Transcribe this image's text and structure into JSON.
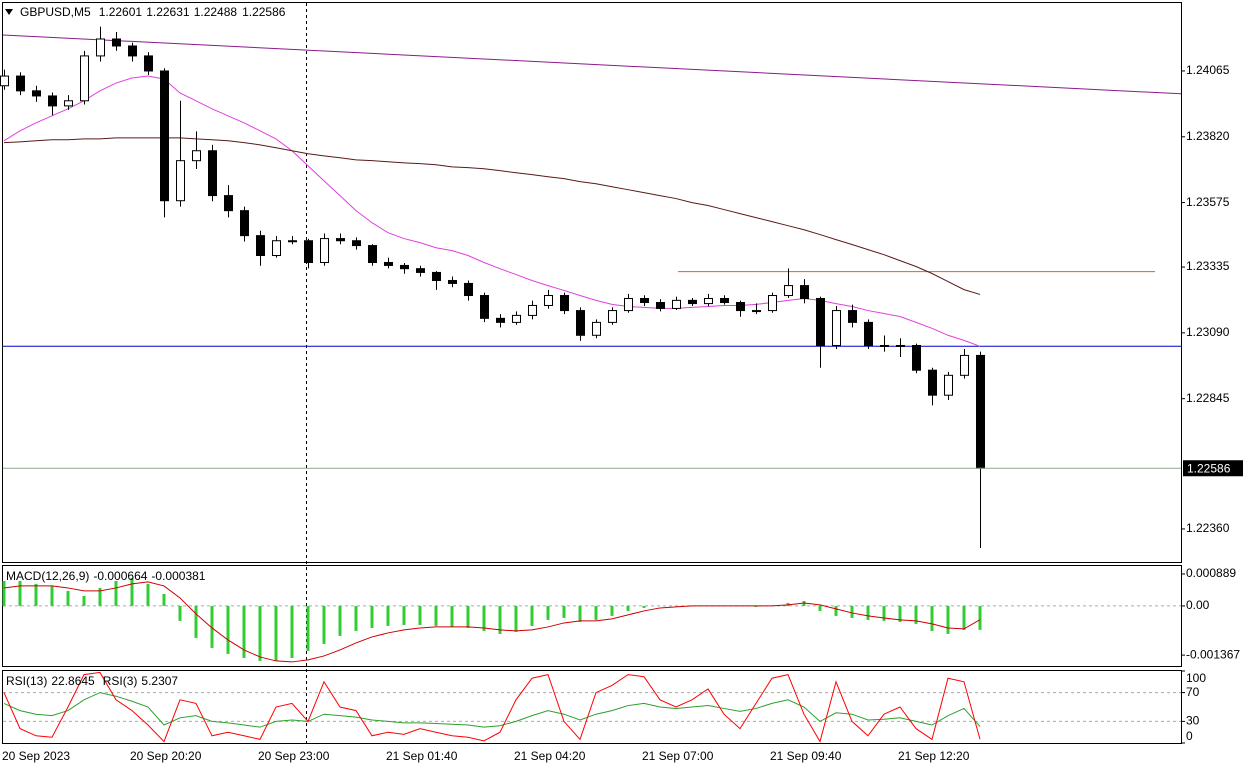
{
  "chart_data": [
    {
      "type": "candlestick",
      "title": "GBPUSD,M5",
      "header_ohlc": [
        1.22601,
        1.22631,
        1.22488,
        1.22586
      ],
      "up_color": "#ffffff",
      "down_color": "#000000",
      "ylim": [
        1.22237,
        1.24318
      ],
      "yticks": [
        1.24065,
        {
          "value": 1.2382,
          "label": "1.23820"
        },
        1.23575,
        1.23335,
        {
          "value": 1.2309,
          "label": "1.23090"
        },
        1.22845,
        {
          "value": 1.2236,
          "label": "1.22360"
        }
      ],
      "time_labels": [
        "20 Sep 2023",
        "20 Sep 20:20",
        "20 Sep 23:00",
        "21 Sep 01:40",
        "21 Sep 04:20",
        "21 Sep 07:00",
        "21 Sep 09:40",
        "21 Sep 12:20"
      ],
      "levels": [
        {
          "value": 1.2304,
          "color": "#0000cd"
        },
        {
          "value": 1.23318,
          "color": "#d2691e"
        }
      ],
      "trendline": {
        "values": [
          1.24199,
          1.2398
        ],
        "color": "#8b1a8b"
      },
      "candles": [
        [
          1.2401,
          1.2407,
          1.23995,
          1.24046
        ],
        [
          1.24046,
          1.2406,
          1.23975,
          1.23991
        ],
        [
          1.23991,
          1.2401,
          1.2395,
          1.23972
        ],
        [
          1.23972,
          1.23985,
          1.239,
          1.23935
        ],
        [
          1.23935,
          1.23975,
          1.2392,
          1.23954
        ],
        [
          1.23954,
          1.2414,
          1.2394,
          1.24121
        ],
        [
          1.24121,
          1.2423,
          1.241,
          1.24184
        ],
        [
          1.24184,
          1.2421,
          1.2414,
          1.24158
        ],
        [
          1.24158,
          1.2417,
          1.241,
          1.24121
        ],
        [
          1.24121,
          1.24135,
          1.2405,
          1.24065
        ],
        [
          1.24065,
          1.24075,
          1.2352,
          1.23582
        ],
        [
          1.23582,
          1.23954,
          1.2356,
          1.23731
        ],
        [
          1.23731,
          1.2384,
          1.237,
          1.23768
        ],
        [
          1.23768,
          1.2379,
          1.2358,
          1.23601
        ],
        [
          1.23601,
          1.2364,
          1.2352,
          1.23545
        ],
        [
          1.23545,
          1.2356,
          1.2343,
          1.23452
        ],
        [
          1.23452,
          1.2347,
          1.2334,
          1.23378
        ],
        [
          1.23378,
          1.2345,
          1.2337,
          1.23433
        ],
        [
          1.23433,
          1.2345,
          1.2342,
          1.23433
        ],
        [
          1.23433,
          1.2344,
          1.2333,
          1.23352
        ],
        [
          1.23352,
          1.2346,
          1.2334,
          1.23441
        ],
        [
          1.23441,
          1.2346,
          1.2342,
          1.23433
        ],
        [
          1.23433,
          1.23445,
          1.234,
          1.23415
        ],
        [
          1.23415,
          1.2342,
          1.2334,
          1.23352
        ],
        [
          1.23352,
          1.2337,
          1.2333,
          1.23341
        ],
        [
          1.23341,
          1.2335,
          1.2331,
          1.23329
        ],
        [
          1.23329,
          1.2334,
          1.233,
          1.23315
        ],
        [
          1.23315,
          1.2332,
          1.2325,
          1.23285
        ],
        [
          1.23285,
          1.233,
          1.2326,
          1.23274
        ],
        [
          1.23274,
          1.23285,
          1.2321,
          1.23229
        ],
        [
          1.23229,
          1.2324,
          1.2313,
          1.23144
        ],
        [
          1.23144,
          1.2316,
          1.2311,
          1.23129
        ],
        [
          1.23129,
          1.2317,
          1.2312,
          1.23155
        ],
        [
          1.23155,
          1.2321,
          1.2314,
          1.23192
        ],
        [
          1.23192,
          1.2325,
          1.2318,
          1.23229
        ],
        [
          1.23229,
          1.2324,
          1.2316,
          1.23173
        ],
        [
          1.23173,
          1.23185,
          1.2306,
          1.23081
        ],
        [
          1.23081,
          1.2314,
          1.2307,
          1.23129
        ],
        [
          1.23129,
          1.23185,
          1.2312,
          1.23173
        ],
        [
          1.23173,
          1.23235,
          1.23165,
          1.23218
        ],
        [
          1.23218,
          1.2323,
          1.2319,
          1.23203
        ],
        [
          1.23203,
          1.23215,
          1.2317,
          1.23181
        ],
        [
          1.23181,
          1.23225,
          1.23175,
          1.23211
        ],
        [
          1.23211,
          1.2322,
          1.2319,
          1.23199
        ],
        [
          1.23199,
          1.23235,
          1.2319,
          1.23218
        ],
        [
          1.23218,
          1.2323,
          1.23195,
          1.23203
        ],
        [
          1.23203,
          1.2321,
          1.2315,
          1.23173
        ],
        [
          1.23173,
          1.232,
          1.2316,
          1.23173
        ],
        [
          1.23173,
          1.2324,
          1.23165,
          1.23229
        ],
        [
          1.23229,
          1.2333,
          1.2322,
          1.23266
        ],
        [
          1.23266,
          1.2329,
          1.232,
          1.23218
        ],
        [
          1.23218,
          1.23225,
          1.2296,
          1.23043
        ],
        [
          1.23043,
          1.2319,
          1.2303,
          1.23173
        ],
        [
          1.23173,
          1.23195,
          1.2311,
          1.23129
        ],
        [
          1.23129,
          1.2314,
          1.2303,
          1.23043
        ],
        [
          1.23043,
          1.2308,
          1.2302,
          1.23043
        ],
        [
          1.23043,
          1.2307,
          1.23,
          1.23043
        ],
        [
          1.23043,
          1.2305,
          1.2294,
          1.22951
        ],
        [
          1.22951,
          1.2296,
          1.2282,
          1.22858
        ],
        [
          1.22858,
          1.22945,
          1.2284,
          1.22932
        ],
        [
          1.22932,
          1.2303,
          1.2292,
          1.23006
        ],
        [
          1.23006,
          1.2302,
          1.22289,
          1.22586
        ]
      ],
      "series": [
        {
          "color": "#e040e0",
          "values": [
            1.23805,
            1.23842,
            1.23872,
            1.23898,
            1.23924,
            1.23954,
            1.23991,
            1.2402,
            1.24039,
            1.24046,
            1.24035,
            1.23983,
            1.23954,
            1.23924,
            1.23898,
            1.23872,
            1.23842,
            1.23812,
            1.23768,
            1.23712,
            1.23656,
            1.23601,
            1.23545,
            1.235,
            1.23463,
            1.23441,
            1.23426,
            1.23407,
            1.23396,
            1.23378,
            1.23352,
            1.23329,
            1.23307,
            1.23285,
            1.23266,
            1.23248,
            1.23229,
            1.23211,
            1.23196,
            1.23188,
            1.23185,
            1.23181,
            1.23181,
            1.23185,
            1.23188,
            1.23192,
            1.23192,
            1.23196,
            1.23203,
            1.23211,
            1.23218,
            1.23211,
            1.23199,
            1.23188,
            1.23173,
            1.23162,
            1.23151,
            1.23129,
            1.23107,
            1.23081,
            1.23062,
            1.2304
          ]
        },
        {
          "color": "#5a1a1a",
          "values": [
            1.23798,
            1.23801,
            1.23805,
            1.23809,
            1.23809,
            1.23812,
            1.23812,
            1.23816,
            1.23816,
            1.23816,
            1.23816,
            1.23816,
            1.23812,
            1.23809,
            1.23805,
            1.23798,
            1.2379,
            1.23779,
            1.23768,
            1.23757,
            1.23749,
            1.23742,
            1.23734,
            1.23731,
            1.23727,
            1.23723,
            1.2372,
            1.23716,
            1.23708,
            1.23705,
            1.23701,
            1.23694,
            1.23686,
            1.23679,
            1.23671,
            1.23664,
            1.23653,
            1.23645,
            1.23634,
            1.23623,
            1.23612,
            1.23601,
            1.2359,
            1.23575,
            1.23564,
            1.23549,
            1.23534,
            1.23519,
            1.23504,
            1.23489,
            1.23474,
            1.23456,
            1.23437,
            1.23419,
            1.234,
            1.23381,
            1.23359,
            1.23337,
            1.23311,
            1.23281,
            1.23251,
            1.23233
          ]
        }
      ]
    },
    {
      "type": "bar",
      "title": "MACD(12,26,9)",
      "zero_line": true,
      "ylim": [
        -0.00167,
        0.00111
      ],
      "yticks": [
        0.000889,
        {
          "value": 0,
          "label": "0.00"
        },
        -0.001367
      ],
      "series": [
        {
          "type": "bar",
          "color": "#32cd32",
          "values": [
            0.000695,
            0.000695,
            0.000612,
            0.000556,
            0.000417,
            0.000278,
            0.0005,
            0.000695,
            0.000778,
            0.000612,
            0.000334,
            -0.000417,
            -0.00089,
            -0.001168,
            -0.001334,
            -0.001446,
            -0.001529,
            -0.001529,
            -0.001446,
            -0.001251,
            -0.001056,
            -0.000834,
            -0.000695,
            -0.000612,
            -0.000556,
            -0.000528,
            -0.000528,
            -0.000556,
            -0.000584,
            -0.000612,
            -0.000695,
            -0.000778,
            -0.000723,
            -0.000556,
            -0.000389,
            -0.000334,
            -0.000445,
            -0.000389,
            -0.000278,
            -0.000139,
            -5.6e-05,
            0,
            0,
            0,
            0,
            0,
            0,
            -2.8e-05,
            0,
            8.3e-05,
            0.000139,
            -0.000139,
            -0.000278,
            -0.000334,
            -0.000389,
            -0.000417,
            -0.000445,
            -0.0005,
            -0.000695,
            -0.000778,
            -0.000667,
            -0.000664
          ]
        },
        {
          "type": "line",
          "color": "#cc0000",
          "values": [
            0.0005,
            0.000556,
            0.000556,
            0.000556,
            0.0005,
            0.000417,
            0.000417,
            0.0005,
            0.000612,
            0.000667,
            0.000556,
            0.000222,
            -0.000222,
            -0.000612,
            -0.000945,
            -0.001223,
            -0.001418,
            -0.001529,
            -0.001557,
            -0.001501,
            -0.00139,
            -0.001223,
            -0.001029,
            -0.000862,
            -0.000751,
            -0.000667,
            -0.000612,
            -0.000584,
            -0.000584,
            -0.000584,
            -0.000612,
            -0.000667,
            -0.000695,
            -0.000667,
            -0.000584,
            -0.000473,
            -0.000417,
            -0.000417,
            -0.000361,
            -0.00025,
            -0.000139,
            -5.6e-05,
            -2.8e-05,
            0,
            0,
            0,
            0,
            0,
            0,
            2.8e-05,
            8.3e-05,
            2.8e-05,
            -8.3e-05,
            -0.000195,
            -0.000278,
            -0.000334,
            -0.000389,
            -0.000417,
            -0.0005,
            -0.000612,
            -0.000639,
            -0.000381
          ]
        }
      ]
    },
    {
      "type": "line",
      "grid": true,
      "ylim": [
        0,
        100
      ],
      "yticks": [
        100,
        70,
        30,
        0
      ],
      "series": [
        {
          "name": "RSI(13)",
          "color": "#2ca02c",
          "values": [
            55,
            45,
            40,
            38,
            45,
            60,
            70,
            65,
            58,
            50,
            25,
            35,
            38,
            30,
            28,
            25,
            22,
            30,
            32,
            30,
            40,
            38,
            36,
            32,
            30,
            28,
            28,
            27,
            26,
            25,
            22,
            24,
            30,
            38,
            45,
            40,
            32,
            40,
            45,
            52,
            55,
            50,
            48,
            50,
            52,
            48,
            44,
            48,
            55,
            60,
            50,
            30,
            42,
            40,
            32,
            33,
            35,
            30,
            25,
            38,
            48,
            22.8645
          ]
        },
        {
          "name": "RSI(3)",
          "color": "#ff0000",
          "values": [
            70,
            20,
            10,
            8,
            50,
            95,
            98,
            60,
            45,
            25,
            2,
            60,
            55,
            10,
            15,
            10,
            5,
            50,
            55,
            30,
            85,
            50,
            45,
            10,
            15,
            12,
            20,
            15,
            10,
            8,
            3,
            15,
            60,
            90,
            95,
            30,
            5,
            70,
            80,
            95,
            92,
            60,
            50,
            60,
            75,
            40,
            20,
            55,
            90,
            95,
            40,
            2,
            85,
            30,
            10,
            40,
            50,
            20,
            5,
            90,
            85,
            5.2307
          ]
        }
      ]
    }
  ]
}
